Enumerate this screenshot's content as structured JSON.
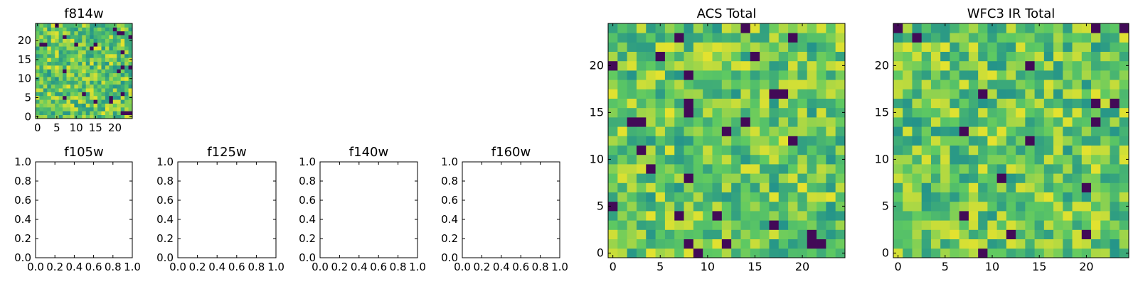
{
  "chart_data": [
    {
      "type": "heatmap",
      "title": "f814w",
      "grid_size": 25,
      "colormap": [
        "#440154",
        "#21918c",
        "#5ec962",
        "#fde725"
      ],
      "x_ticks": [
        "0",
        "5",
        "10",
        "15",
        "20"
      ],
      "y_ticks": [
        "0",
        "5",
        "10",
        "15",
        "20"
      ],
      "xlim": [
        -0.5,
        24.5
      ],
      "ylim": [
        -0.5,
        24.5
      ],
      "grid": false
    },
    {
      "type": "heatmap",
      "title": "f105w",
      "empty": true,
      "x_ticks": [
        "0.0",
        "0.2",
        "0.4",
        "0.6",
        "0.8",
        "1.0"
      ],
      "y_ticks": [
        "0.0",
        "0.2",
        "0.4",
        "0.6",
        "0.8",
        "1.0"
      ],
      "xlim": [
        0,
        1
      ],
      "ylim": [
        0,
        1
      ],
      "grid": false
    },
    {
      "type": "heatmap",
      "title": "f125w",
      "empty": true,
      "x_ticks": [
        "0.0",
        "0.2",
        "0.4",
        "0.6",
        "0.8",
        "1.0"
      ],
      "y_ticks": [
        "0.0",
        "0.2",
        "0.4",
        "0.6",
        "0.8",
        "1.0"
      ],
      "xlim": [
        0,
        1
      ],
      "ylim": [
        0,
        1
      ],
      "grid": false
    },
    {
      "type": "heatmap",
      "title": "f140w",
      "empty": true,
      "x_ticks": [
        "0.0",
        "0.2",
        "0.4",
        "0.6",
        "0.8",
        "1.0"
      ],
      "y_ticks": [
        "0.0",
        "0.2",
        "0.4",
        "0.6",
        "0.8",
        "1.0"
      ],
      "xlim": [
        0,
        1
      ],
      "ylim": [
        0,
        1
      ],
      "grid": false
    },
    {
      "type": "heatmap",
      "title": "f160w",
      "empty": true,
      "x_ticks": [
        "0.0",
        "0.2",
        "0.4",
        "0.6",
        "0.8",
        "1.0"
      ],
      "y_ticks": [
        "0.0",
        "0.2",
        "0.4",
        "0.6",
        "0.8",
        "1.0"
      ],
      "xlim": [
        0,
        1
      ],
      "ylim": [
        0,
        1
      ],
      "grid": false
    },
    {
      "type": "heatmap",
      "title": "ACS Total",
      "grid_size": 25,
      "colormap": [
        "#440154",
        "#21918c",
        "#5ec962",
        "#fde725"
      ],
      "x_ticks": [
        "0",
        "5",
        "10",
        "15",
        "20"
      ],
      "y_ticks": [
        "0",
        "5",
        "10",
        "15",
        "20"
      ],
      "xlim": [
        -0.5,
        24.5
      ],
      "ylim": [
        -0.5,
        24.5
      ],
      "grid": false
    },
    {
      "type": "heatmap",
      "title": "WFC3 IR Total",
      "grid_size": 25,
      "colormap": [
        "#440154",
        "#21918c",
        "#5ec962",
        "#fde725"
      ],
      "x_ticks": [
        "0",
        "5",
        "10",
        "15",
        "20"
      ],
      "y_ticks": [
        "0",
        "5",
        "10",
        "15",
        "20"
      ],
      "xlim": [
        -0.5,
        24.5
      ],
      "ylim": [
        -0.5,
        24.5
      ],
      "grid": false
    }
  ]
}
